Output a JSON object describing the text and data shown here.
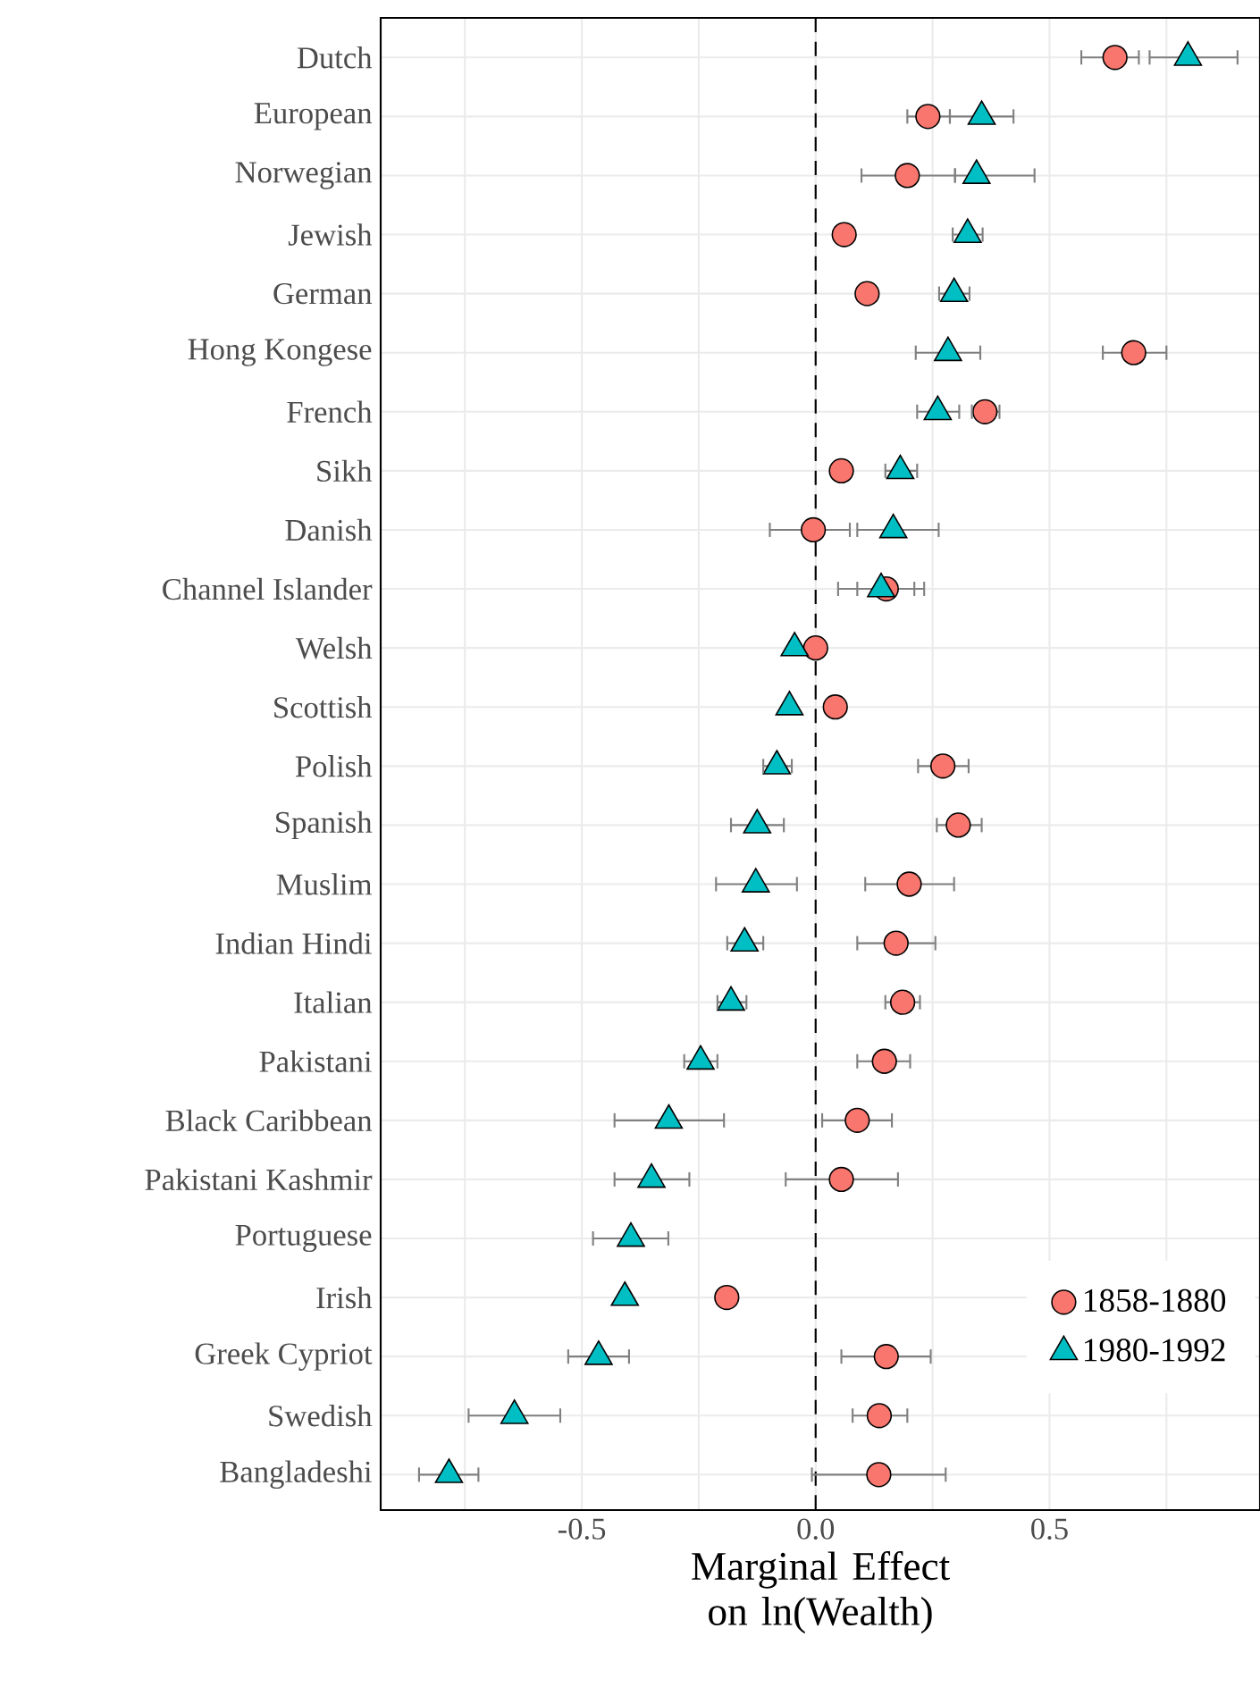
{
  "chart_data": {
    "type": "scatter",
    "orientation": "horizontal",
    "xlabel": "Marginal Effect on ln(Wealth)",
    "categories": [
      "Dutch",
      "European",
      "Norwegian",
      "Jewish",
      "German",
      "Hong Kongese",
      "French",
      "Sikh",
      "Danish",
      "Channel Islander",
      "Welsh",
      "Scottish",
      "Polish",
      "Spanish",
      "Muslim",
      "Indian Hindi",
      "Italian",
      "Pakistani",
      "Black Caribbean",
      "Pakistani Kashmir",
      "Portuguese",
      "Irish",
      "Greek Cypriot",
      "Swedish",
      "Bangladeshi"
    ],
    "series": [
      {
        "name": "1858-1880",
        "color": "#f8766d",
        "marker": "circle",
        "values": [
          0.64,
          0.24,
          0.196,
          0.061,
          0.11,
          0.68,
          0.362,
          0.055,
          -0.005,
          0.151,
          0.0,
          0.042,
          0.272,
          0.305,
          0.2,
          0.172,
          0.186,
          0.147,
          0.089,
          0.055,
          null,
          -0.19,
          0.151,
          0.136,
          0.135
        ],
        "errors": [
          [
            0.568,
            0.691
          ],
          [
            0.196,
            0.287
          ],
          [
            0.098,
            0.298
          ],
          null,
          null,
          [
            0.614,
            0.75
          ],
          [
            0.334,
            0.393
          ],
          null,
          [
            -0.098,
            0.073
          ],
          [
            0.089,
            0.211
          ],
          null,
          null,
          [
            0.219,
            0.327
          ],
          [
            0.259,
            0.355
          ],
          [
            0.106,
            0.296
          ],
          [
            0.089,
            0.256
          ],
          [
            0.149,
            0.223
          ],
          [
            0.089,
            0.202
          ],
          [
            0.014,
            0.163
          ],
          [
            -0.064,
            0.176
          ],
          null,
          null,
          [
            0.055,
            0.246
          ],
          [
            0.079,
            0.196
          ],
          [
            -0.008,
            0.278
          ]
        ]
      },
      {
        "name": "1980-1992",
        "color": "#00bfc4",
        "marker": "triangle",
        "values": [
          0.796,
          0.355,
          0.344,
          0.325,
          0.296,
          0.283,
          0.261,
          0.181,
          0.166,
          0.14,
          -0.045,
          -0.056,
          -0.083,
          -0.125,
          -0.128,
          -0.152,
          -0.181,
          -0.246,
          -0.314,
          -0.351,
          -0.395,
          -0.408,
          -0.464,
          -0.644,
          -0.784
        ],
        "errors": [
          [
            0.714,
            0.902
          ],
          [
            0.287,
            0.423
          ],
          [
            0.298,
            0.468
          ],
          [
            0.293,
            0.357
          ],
          [
            0.264,
            0.329
          ],
          [
            0.214,
            0.352
          ],
          [
            0.217,
            0.307
          ],
          [
            0.149,
            0.217
          ],
          [
            0.089,
            0.263
          ],
          [
            0.048,
            0.232
          ],
          null,
          null,
          [
            -0.112,
            -0.051
          ],
          [
            -0.181,
            -0.068
          ],
          [
            -0.213,
            -0.04
          ],
          [
            -0.189,
            -0.112
          ],
          [
            -0.21,
            -0.148
          ],
          [
            -0.281,
            -0.21
          ],
          [
            -0.43,
            -0.196
          ],
          [
            -0.43,
            -0.27
          ],
          [
            -0.476,
            -0.315
          ],
          null,
          [
            -0.529,
            -0.399
          ],
          [
            -0.742,
            -0.546
          ],
          [
            -0.848,
            -0.721
          ]
        ]
      }
    ],
    "xlim": [
      -0.93,
      0.95
    ],
    "xticks": [
      {
        "value": -0.75,
        "label": null
      },
      -0.5,
      {
        "value": -0.25,
        "label": null
      },
      {
        "value": 0,
        "label": "0.0"
      },
      {
        "value": 0.25,
        "label": null
      },
      0.5,
      {
        "value": 0.75,
        "label": null
      }
    ],
    "ref_lines": [
      {
        "axis": "x",
        "value": 0,
        "color": "#000000",
        "line_style": "dashed"
      }
    ],
    "grid": true,
    "legend": "bottom right"
  }
}
